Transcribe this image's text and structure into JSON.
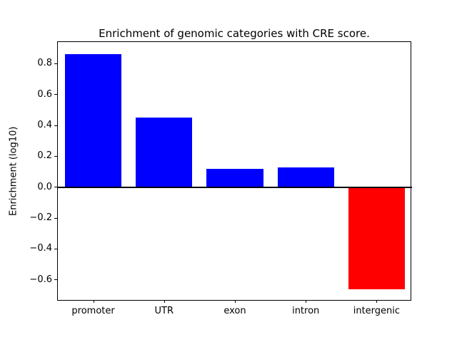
{
  "chart_data": {
    "type": "bar",
    "title": "Enrichment of genomic categories with CRE score.",
    "xlabel": "",
    "ylabel": "Enrichment (log10)",
    "categories": [
      "promoter",
      "UTR",
      "exon",
      "intron",
      "intergenic"
    ],
    "values": [
      0.86,
      0.45,
      0.12,
      0.13,
      -0.66
    ],
    "bar_colors": [
      "#0000ff",
      "#0000ff",
      "#0000ff",
      "#0000ff",
      "#ff0000"
    ],
    "positive_color": "#0000ff",
    "negative_color": "#ff0000",
    "ylim": [
      -0.74,
      0.94
    ],
    "y_ticks": [
      -0.6,
      -0.4,
      -0.2,
      0.0,
      0.2,
      0.4,
      0.6,
      0.8
    ],
    "zero_line": 0,
    "grid": false,
    "legend": "none"
  }
}
